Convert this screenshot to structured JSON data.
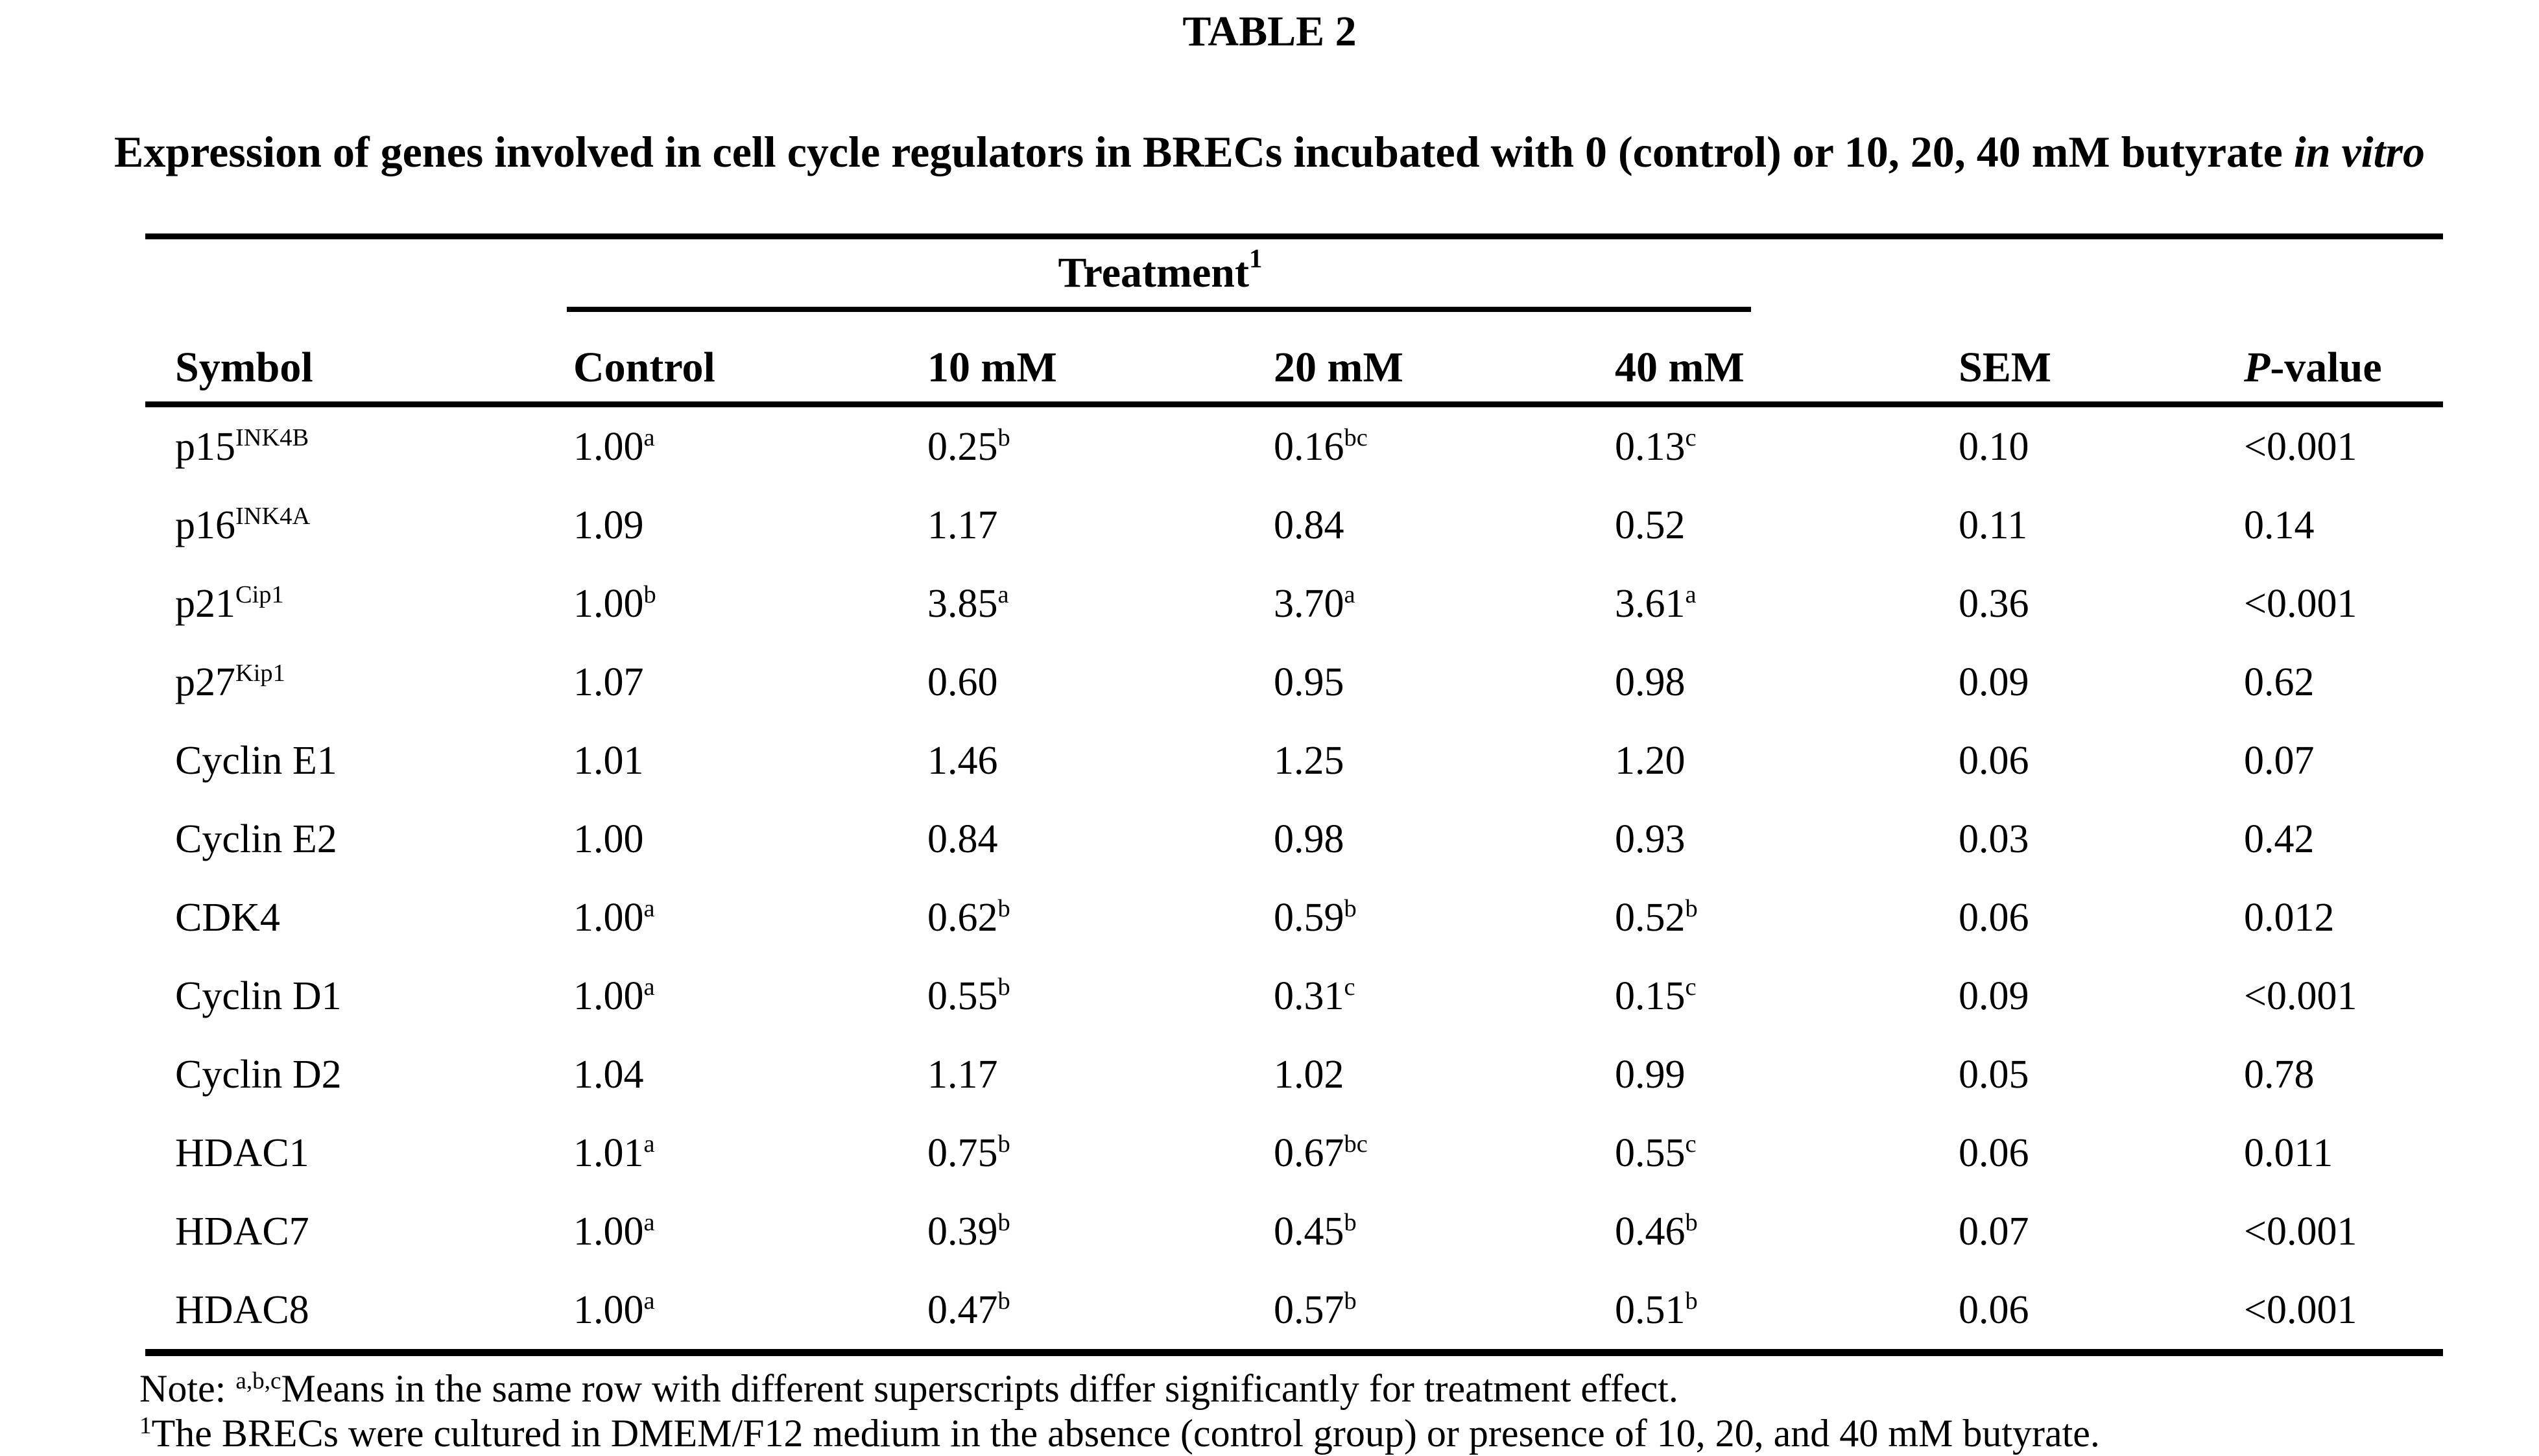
{
  "page": {
    "title": "TABLE 2",
    "caption_text": "Expression of genes involved in cell cycle regulators in BRECs incubated with 0 (control) or 10, 20, 40 mM butyrate",
    "caption_italic": "in vitro"
  },
  "table": {
    "group_header": {
      "label": "Treatment",
      "sup": "1"
    },
    "columns": [
      {
        "key": "symbol",
        "label": "Symbol"
      },
      {
        "key": "control",
        "label": "Control"
      },
      {
        "key": "10mm",
        "label": "10 mM"
      },
      {
        "key": "20mm",
        "label": "20 mM"
      },
      {
        "key": "40mm",
        "label": "40 mM"
      },
      {
        "key": "sem",
        "label": "SEM"
      },
      {
        "key": "p-value",
        "italic_prefix": "P",
        "label": "-value"
      }
    ],
    "rows": [
      {
        "symbol": {
          "text": "p15",
          "sup": "INK4B"
        },
        "values": [
          {
            "text": "1.00",
            "sup": "a"
          },
          {
            "text": "0.25",
            "sup": "b"
          },
          {
            "text": "0.16",
            "sup": "bc"
          },
          {
            "text": "0.13",
            "sup": "c"
          },
          {
            "text": "0.10"
          },
          {
            "text": "<0.001"
          }
        ]
      },
      {
        "symbol": {
          "text": "p16",
          "sup": "INK4A"
        },
        "values": [
          {
            "text": "1.09"
          },
          {
            "text": "1.17"
          },
          {
            "text": "0.84"
          },
          {
            "text": "0.52"
          },
          {
            "text": "0.11"
          },
          {
            "text": "0.14"
          }
        ]
      },
      {
        "symbol": {
          "text": "p21",
          "sup": "Cip1"
        },
        "values": [
          {
            "text": "1.00",
            "sup": "b"
          },
          {
            "text": "3.85",
            "sup": "a"
          },
          {
            "text": "3.70",
            "sup": "a"
          },
          {
            "text": "3.61",
            "sup": "a"
          },
          {
            "text": "0.36"
          },
          {
            "text": "<0.001"
          }
        ]
      },
      {
        "symbol": {
          "text": "p27",
          "sup": "Kip1"
        },
        "values": [
          {
            "text": "1.07"
          },
          {
            "text": "0.60"
          },
          {
            "text": "0.95"
          },
          {
            "text": "0.98"
          },
          {
            "text": "0.09"
          },
          {
            "text": "0.62"
          }
        ]
      },
      {
        "symbol": {
          "text": "Cyclin E1"
        },
        "values": [
          {
            "text": "1.01"
          },
          {
            "text": "1.46"
          },
          {
            "text": "1.25"
          },
          {
            "text": "1.20"
          },
          {
            "text": "0.06"
          },
          {
            "text": "0.07"
          }
        ]
      },
      {
        "symbol": {
          "text": "Cyclin E2"
        },
        "values": [
          {
            "text": "1.00"
          },
          {
            "text": "0.84"
          },
          {
            "text": "0.98"
          },
          {
            "text": "0.93"
          },
          {
            "text": "0.03"
          },
          {
            "text": "0.42"
          }
        ]
      },
      {
        "symbol": {
          "text": "CDK4"
        },
        "values": [
          {
            "text": "1.00",
            "sup": "a"
          },
          {
            "text": "0.62",
            "sup": "b"
          },
          {
            "text": "0.59",
            "sup": "b"
          },
          {
            "text": "0.52",
            "sup": "b"
          },
          {
            "text": "0.06"
          },
          {
            "text": "0.012"
          }
        ]
      },
      {
        "symbol": {
          "text": "Cyclin D1"
        },
        "values": [
          {
            "text": "1.00",
            "sup": "a"
          },
          {
            "text": "0.55",
            "sup": "b"
          },
          {
            "text": "0.31",
            "sup": "c"
          },
          {
            "text": "0.15",
            "sup": "c"
          },
          {
            "text": "0.09"
          },
          {
            "text": "<0.001"
          }
        ]
      },
      {
        "symbol": {
          "text": "Cyclin D2"
        },
        "values": [
          {
            "text": "1.04"
          },
          {
            "text": "1.17"
          },
          {
            "text": "1.02"
          },
          {
            "text": "0.99"
          },
          {
            "text": "0.05"
          },
          {
            "text": "0.78"
          }
        ]
      },
      {
        "symbol": {
          "text": "HDAC1"
        },
        "values": [
          {
            "text": "1.01",
            "sup": "a"
          },
          {
            "text": "0.75",
            "sup": "b"
          },
          {
            "text": "0.67",
            "sup": "bc"
          },
          {
            "text": "0.55",
            "sup": "c"
          },
          {
            "text": "0.06"
          },
          {
            "text": "0.011"
          }
        ]
      },
      {
        "symbol": {
          "text": "HDAC7"
        },
        "values": [
          {
            "text": "1.00",
            "sup": "a"
          },
          {
            "text": "0.39",
            "sup": "b"
          },
          {
            "text": "0.45",
            "sup": "b"
          },
          {
            "text": "0.46",
            "sup": "b"
          },
          {
            "text": "0.07"
          },
          {
            "text": "<0.001"
          }
        ]
      },
      {
        "symbol": {
          "text": "HDAC8"
        },
        "values": [
          {
            "text": "1.00",
            "sup": "a"
          },
          {
            "text": "0.47",
            "sup": "b"
          },
          {
            "text": "0.57",
            "sup": "b"
          },
          {
            "text": "0.51",
            "sup": "b"
          },
          {
            "text": "0.06"
          },
          {
            "text": "<0.001"
          }
        ]
      }
    ]
  },
  "notes": [
    {
      "prefix": "Note: ",
      "sup": "a,b,c",
      "text": "Means in the same row with different superscripts differ significantly for treatment effect."
    },
    {
      "prefix": "",
      "sup": "1",
      "text": "The BRECs were cultured in DMEM/F12 medium in the absence (control group) or presence of 10, 20, and 40 mM butyrate."
    }
  ]
}
